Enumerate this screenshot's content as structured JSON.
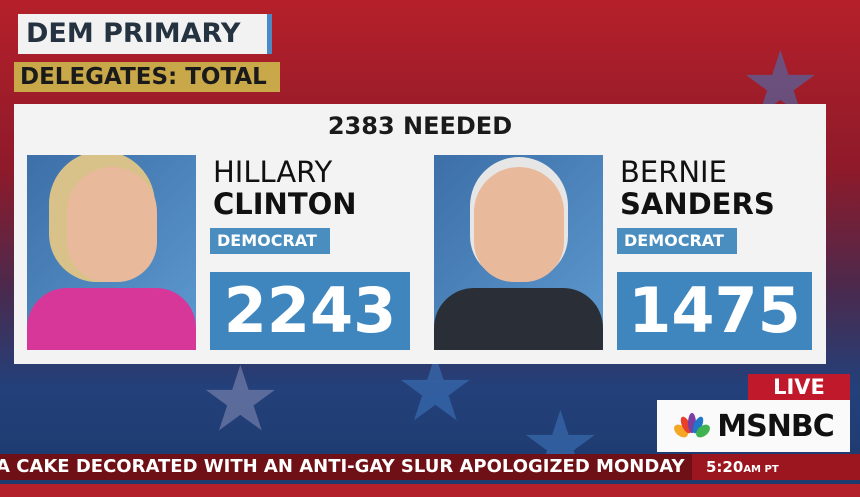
{
  "header": {
    "title": "DEM PRIMARY",
    "subtitle": "DELEGATES: TOTAL"
  },
  "needed": "2383 NEEDED",
  "candidates": [
    {
      "first": "HILLARY",
      "last": "CLINTON",
      "party": "DEMOCRAT",
      "delegates": "2243"
    },
    {
      "first": "BERNIE",
      "last": "SANDERS",
      "party": "DEMOCRAT",
      "delegates": "1475"
    }
  ],
  "bug": {
    "live": "LIVE",
    "network": "MSNBC"
  },
  "ticker": {
    "text": "A CAKE DECORATED WITH AN ANTI-GAY SLUR APOLOGIZED MONDAY AND",
    "time": "5:20",
    "ampm": "AM PT"
  },
  "colors": {
    "accent_blue": "#3f86bf",
    "gold": "#c9a84a",
    "live_red": "#c0192b",
    "ticker": "#6e1015"
  }
}
